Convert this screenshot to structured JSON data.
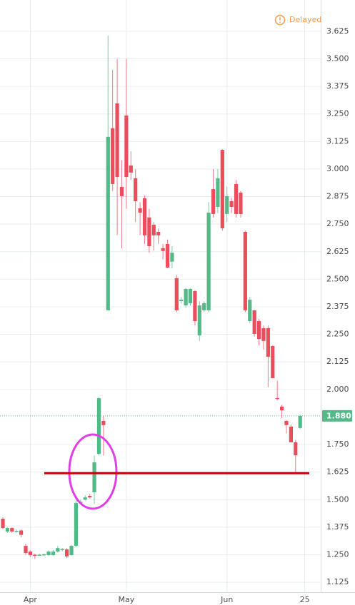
{
  "chart_data": {
    "type": "candlestick",
    "status": "Delayed",
    "up_color": "#53b987",
    "down_color": "#eb4d5c",
    "grid": true,
    "xlim": [
      -0.625,
      69.5
    ],
    "xticks": [
      {
        "value": 6,
        "label": "Apr"
      },
      {
        "value": 27,
        "label": "May"
      },
      {
        "value": 49,
        "label": "Jun"
      },
      {
        "value": 66,
        "label": "25"
      }
    ],
    "ylim": [
      1.08,
      3.767
    ],
    "yticks": [
      3.625,
      {
        "value": 3.5,
        "label": "3.500"
      },
      3.375,
      {
        "value": 3.25,
        "label": "3.250"
      },
      3.125,
      {
        "value": 3.0,
        "label": "3.000"
      },
      2.875,
      {
        "value": 2.75,
        "label": "2.750"
      },
      2.625,
      {
        "value": 2.5,
        "label": "2.500"
      },
      2.375,
      {
        "value": 2.25,
        "label": "2.250"
      },
      2.125,
      {
        "value": 2.0,
        "label": "2.000"
      },
      {
        "value": 1.75,
        "label": "1.750"
      },
      1.625,
      {
        "value": 1.5,
        "label": "1.500"
      },
      1.375,
      {
        "value": 1.25,
        "label": "1.250"
      },
      1.125
    ],
    "last_price": {
      "value": 1.88,
      "label": "1.880"
    },
    "support_level": 1.62,
    "open": [
      1.413,
      1.355,
      1.371,
      1.355,
      1.36,
      1.29,
      1.264,
      1.25,
      1.248,
      1.249,
      1.248,
      1.248,
      1.264,
      1.272,
      1.274,
      1.248,
      1.29,
      1.485,
      1.5,
      1.517,
      1.533,
      1.708,
      1.857,
      2.359,
      3.185,
      3.298,
      2.919,
      3.243,
      3.016,
      2.958,
      2.822,
      2.867,
      2.78,
      2.747,
      2.715,
      2.641,
      2.66,
      2.58,
      2.505,
      2.401,
      2.381,
      2.391,
      2.446,
      2.245,
      2.359,
      2.359,
      2.909,
      2.828,
      3.087,
      2.796,
      2.854,
      2.932,
      2.893,
      2.715,
      2.31,
      2.359,
      2.31,
      2.278,
      2.278,
      2.197,
      1.961,
      1.922,
      1.857,
      1.831,
      1.76,
      1.825
    ],
    "high": [
      1.42,
      1.375,
      1.375,
      1.365,
      1.365,
      1.3,
      1.27,
      1.255,
      1.255,
      1.255,
      1.27,
      1.27,
      1.29,
      1.28,
      1.28,
      1.295,
      1.5,
      1.5,
      1.52,
      1.525,
      1.7,
      1.965,
      1.88,
      3.606,
      3.45,
      3.5,
      3.04,
      3.5,
      3.08,
      3.0,
      2.85,
      2.88,
      2.82,
      2.76,
      2.73,
      2.66,
      2.68,
      2.65,
      2.52,
      2.42,
      2.46,
      2.46,
      2.45,
      2.4,
      2.4,
      2.85,
      3.0,
      3.0,
      3.09,
      2.92,
      2.87,
      2.95,
      2.9,
      2.72,
      2.42,
      2.36,
      2.32,
      2.29,
      2.29,
      2.2,
      2.04,
      1.93,
      1.86,
      1.84,
      1.77,
      1.885
    ],
    "low": [
      1.365,
      1.35,
      1.35,
      1.35,
      1.33,
      1.25,
      1.24,
      1.23,
      1.245,
      1.245,
      1.245,
      1.245,
      1.26,
      1.265,
      1.235,
      1.245,
      1.285,
      1.48,
      1.495,
      1.505,
      1.48,
      1.7,
      1.7,
      2.359,
      2.9,
      2.7,
      2.64,
      2.82,
      2.95,
      2.76,
      2.7,
      2.66,
      2.62,
      2.63,
      2.66,
      2.59,
      2.55,
      2.55,
      2.35,
      2.39,
      2.37,
      2.38,
      2.29,
      2.22,
      2.35,
      2.35,
      2.78,
      2.8,
      2.72,
      2.76,
      2.8,
      2.78,
      2.78,
      2.35,
      2.3,
      2.24,
      2.2,
      2.18,
      2.01,
      2.05,
      1.95,
      1.87,
      1.8,
      1.76,
      1.615,
      1.82
    ],
    "close": [
      1.371,
      1.371,
      1.355,
      1.358,
      1.34,
      1.258,
      1.248,
      1.246,
      1.25,
      1.252,
      1.264,
      1.264,
      1.28,
      1.276,
      1.242,
      1.29,
      1.485,
      1.49,
      1.51,
      1.51,
      1.669,
      1.96,
      1.838,
      3.146,
      2.932,
      2.964,
      2.877,
      2.964,
      2.984,
      2.854,
      2.802,
      2.699,
      2.65,
      2.699,
      2.699,
      2.628,
      2.553,
      2.62,
      2.359,
      2.407,
      2.456,
      2.456,
      2.31,
      2.381,
      2.391,
      2.802,
      2.796,
      2.958,
      2.731,
      2.877,
      2.828,
      2.796,
      2.796,
      2.359,
      2.407,
      2.252,
      2.229,
      2.22,
      2.148,
      2.051,
      1.958,
      1.905,
      1.838,
      1.76,
      1.701,
      1.88
    ]
  }
}
